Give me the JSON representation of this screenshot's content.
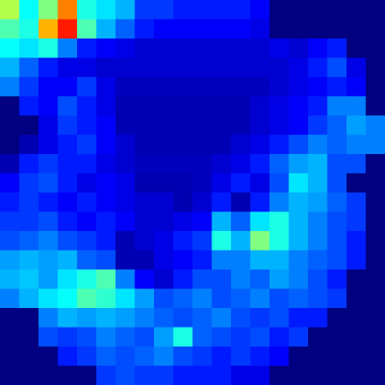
{
  "chart_data": {
    "type": "heatmap",
    "color": "jet",
    "zlim": [
      0,
      100
    ],
    "tick_labels": false,
    "cells": [
      [
        55,
        38,
        50,
        75,
        40,
        35,
        30,
        18,
        18,
        15,
        15,
        15,
        15,
        12,
        0,
        0,
        0,
        0,
        0,
        0
      ],
      [
        45,
        40,
        70,
        85,
        45,
        30,
        22,
        15,
        12,
        12,
        12,
        12,
        12,
        10,
        0,
        0,
        0,
        0,
        0,
        0
      ],
      [
        38,
        35,
        40,
        25,
        15,
        12,
        10,
        8,
        8,
        8,
        8,
        8,
        8,
        8,
        10,
        8,
        12,
        15,
        0,
        0
      ],
      [
        30,
        22,
        15,
        10,
        10,
        8,
        8,
        8,
        8,
        8,
        8,
        8,
        8,
        8,
        8,
        10,
        15,
        20,
        10,
        0
      ],
      [
        25,
        18,
        12,
        12,
        18,
        10,
        6,
        6,
        6,
        6,
        6,
        6,
        6,
        6,
        8,
        10,
        12,
        15,
        12,
        0
      ],
      [
        0,
        15,
        12,
        20,
        15,
        10,
        5,
        5,
        5,
        5,
        5,
        5,
        5,
        8,
        10,
        12,
        15,
        25,
        25,
        0
      ],
      [
        0,
        0,
        10,
        18,
        15,
        12,
        5,
        5,
        5,
        5,
        5,
        5,
        5,
        8,
        10,
        12,
        18,
        22,
        28,
        25
      ],
      [
        0,
        5,
        10,
        15,
        18,
        12,
        8,
        5,
        5,
        5,
        5,
        5,
        8,
        10,
        15,
        20,
        25,
        22,
        25,
        25
      ],
      [
        5,
        15,
        18,
        15,
        15,
        10,
        8,
        6,
        6,
        6,
        6,
        8,
        10,
        15,
        22,
        28,
        30,
        20,
        20,
        0
      ],
      [
        12,
        18,
        20,
        15,
        10,
        12,
        10,
        5,
        5,
        5,
        6,
        10,
        15,
        10,
        20,
        35,
        30,
        20,
        0,
        0
      ],
      [
        15,
        18,
        15,
        12,
        15,
        12,
        10,
        8,
        8,
        5,
        8,
        15,
        5,
        15,
        25,
        30,
        28,
        22,
        18,
        0
      ],
      [
        18,
        18,
        20,
        15,
        12,
        15,
        12,
        8,
        8,
        10,
        12,
        30,
        22,
        35,
        40,
        30,
        25,
        20,
        18,
        0
      ],
      [
        20,
        22,
        25,
        20,
        18,
        15,
        5,
        8,
        10,
        15,
        18,
        40,
        30,
        50,
        40,
        30,
        25,
        20,
        15,
        0
      ],
      [
        28,
        30,
        28,
        30,
        22,
        20,
        5,
        5,
        10,
        12,
        15,
        25,
        25,
        30,
        30,
        25,
        22,
        20,
        15,
        0
      ],
      [
        30,
        32,
        28,
        35,
        40,
        45,
        25,
        12,
        8,
        15,
        20,
        20,
        25,
        22,
        28,
        25,
        20,
        15,
        0,
        0
      ],
      [
        25,
        30,
        35,
        38,
        45,
        42,
        35,
        28,
        20,
        22,
        25,
        20,
        22,
        25,
        20,
        22,
        20,
        18,
        0,
        0
      ],
      [
        0,
        0,
        25,
        30,
        28,
        30,
        28,
        25,
        22,
        20,
        22,
        25,
        20,
        18,
        20,
        15,
        15,
        0,
        0,
        0
      ],
      [
        0,
        0,
        20,
        18,
        20,
        25,
        22,
        20,
        28,
        40,
        22,
        20,
        18,
        20,
        15,
        18,
        0,
        0,
        0,
        0
      ],
      [
        0,
        0,
        0,
        15,
        18,
        22,
        20,
        22,
        25,
        20,
        18,
        15,
        18,
        15,
        12,
        0,
        0,
        0,
        0,
        0
      ],
      [
        0,
        0,
        0,
        0,
        0,
        18,
        20,
        18,
        18,
        15,
        15,
        15,
        10,
        10,
        0,
        0,
        0,
        0,
        0,
        0
      ]
    ]
  }
}
